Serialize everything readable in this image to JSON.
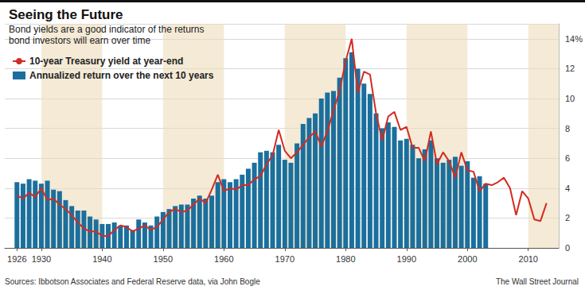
{
  "chart_data": {
    "type": "bar",
    "title": "Seeing the Future",
    "subtitle": "Bond yields are a good indicator of the returns\nbond investors will earn over time",
    "annotations": [
      "Sources: Ibbotson Associates and Federal Reserve data, via John Bogle",
      "The Wall Street Journal"
    ],
    "x": [
      1926,
      1927,
      1928,
      1929,
      1930,
      1931,
      1932,
      1933,
      1934,
      1935,
      1936,
      1937,
      1938,
      1939,
      1940,
      1941,
      1942,
      1943,
      1944,
      1945,
      1946,
      1947,
      1948,
      1949,
      1950,
      1951,
      1952,
      1953,
      1954,
      1955,
      1956,
      1957,
      1958,
      1959,
      1960,
      1961,
      1962,
      1963,
      1964,
      1965,
      1966,
      1967,
      1968,
      1969,
      1970,
      1971,
      1972,
      1973,
      1974,
      1975,
      1976,
      1977,
      1978,
      1979,
      1980,
      1981,
      1982,
      1983,
      1984,
      1985,
      1986,
      1987,
      1988,
      1989,
      1990,
      1991,
      1992,
      1993,
      1994,
      1995,
      1996,
      1997,
      1998,
      1999,
      2000,
      2001,
      2002,
      2003,
      2004,
      2005,
      2006,
      2007,
      2008,
      2009,
      2010,
      2011,
      2012,
      2013
    ],
    "series": [
      {
        "name": "10-year Treasury yield at year-end",
        "type": "line",
        "color": "#d42a22",
        "values": [
          3.5,
          3.3,
          3.7,
          3.4,
          4.0,
          3.2,
          3.3,
          2.9,
          2.6,
          2.2,
          1.7,
          1.3,
          1.1,
          1.1,
          0.8,
          0.8,
          1.2,
          1.5,
          1.4,
          1.1,
          1.3,
          1.5,
          1.2,
          1.4,
          1.9,
          2.4,
          2.6,
          2.4,
          2.5,
          2.9,
          3.3,
          3.0,
          3.9,
          4.9,
          3.8,
          4.0,
          3.9,
          4.2,
          4.2,
          4.6,
          4.8,
          5.6,
          6.2,
          7.9,
          6.5,
          6.0,
          6.4,
          6.9,
          7.4,
          7.8,
          6.8,
          7.8,
          9.2,
          10.5,
          12.5,
          14.0,
          10.4,
          11.8,
          11.6,
          9.0,
          7.2,
          8.8,
          9.1,
          7.9,
          8.1,
          6.7,
          6.7,
          5.8,
          7.8,
          5.6,
          6.4,
          5.8,
          4.7,
          6.4,
          5.2,
          5.1,
          3.8,
          4.3,
          4.2,
          4.4,
          4.7,
          4.0,
          2.2,
          3.8,
          3.3,
          1.9,
          1.8,
          3.0
        ]
      },
      {
        "name": "Annualized return over the next 10 years",
        "type": "bar",
        "color": "#1b6f9c",
        "values": [
          4.4,
          4.3,
          4.6,
          4.5,
          4.3,
          4.5,
          3.9,
          3.8,
          3.2,
          2.8,
          2.5,
          2.5,
          2.1,
          1.9,
          1.6,
          1.6,
          1.7,
          1.5,
          1.5,
          1.2,
          1.9,
          1.7,
          1.5,
          2.1,
          2.4,
          2.6,
          2.8,
          2.9,
          2.9,
          3.3,
          3.5,
          3.3,
          3.5,
          4.4,
          4.6,
          4.4,
          4.6,
          4.9,
          5.3,
          5.7,
          6.4,
          6.5,
          6.4,
          6.9,
          5.9,
          5.7,
          7.0,
          8.3,
          8.7,
          9.0,
          10.0,
          10.4,
          10.5,
          11.4,
          12.7,
          13.1,
          12.0,
          11.0,
          10.3,
          9.0,
          8.0,
          8.4,
          8.1,
          7.2,
          7.3,
          6.9,
          6.0,
          6.6,
          7.2,
          6.0,
          5.7,
          5.9,
          6.1,
          5.5,
          5.8,
          4.7,
          4.8,
          4.3,
          null,
          null,
          null,
          null,
          null,
          null,
          null,
          null,
          null,
          null
        ]
      }
    ],
    "xlim": [
      1924,
      2015
    ],
    "xticks": [
      1926,
      1930,
      1940,
      1950,
      1960,
      1970,
      1980,
      1990,
      2000,
      2010
    ],
    "ylim": [
      0,
      15
    ],
    "yticks": [
      0,
      2,
      4,
      6,
      8,
      10,
      12,
      {
        "value": 14,
        "label": "14%"
      }
    ],
    "grid": true,
    "legend": "top-left"
  }
}
